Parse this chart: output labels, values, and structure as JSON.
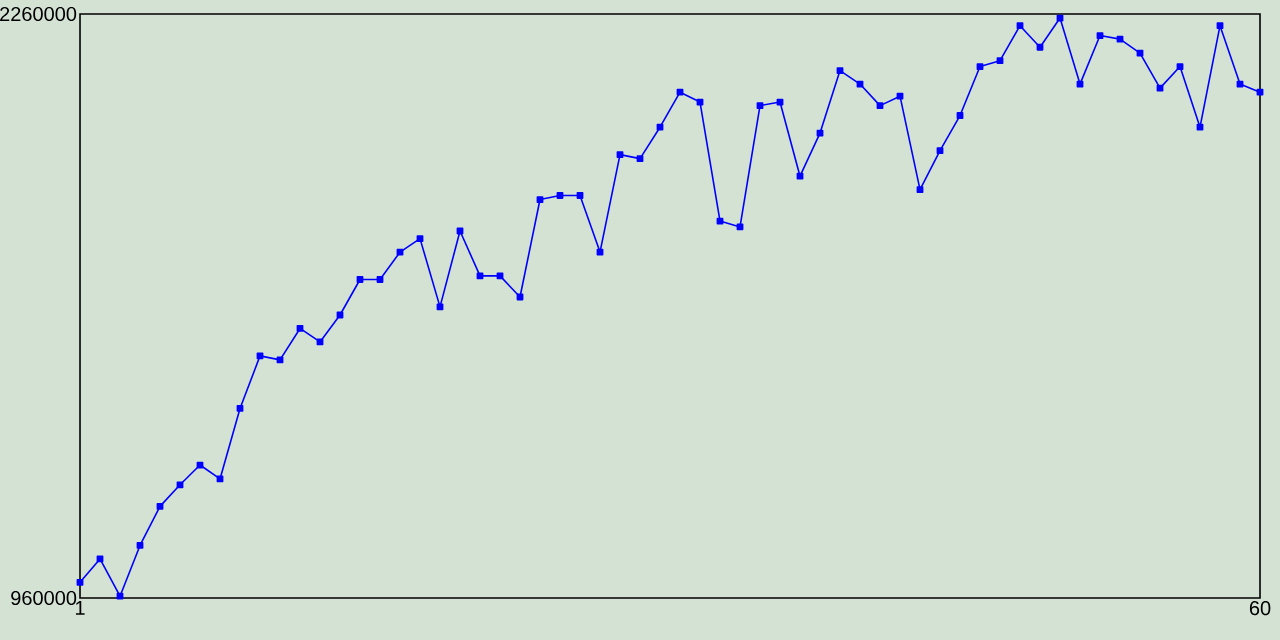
{
  "chart_data": {
    "type": "line",
    "x": [
      1,
      2,
      3,
      4,
      5,
      6,
      7,
      8,
      9,
      10,
      11,
      12,
      13,
      14,
      15,
      16,
      17,
      18,
      19,
      20,
      21,
      22,
      23,
      24,
      25,
      26,
      27,
      28,
      29,
      30,
      31,
      32,
      33,
      34,
      35,
      36,
      37,
      38,
      39,
      40,
      41,
      42,
      43,
      44,
      45,
      46,
      47,
      48,
      49,
      50,
      51,
      52,
      53,
      54,
      55,
      56,
      57,
      58,
      59,
      60
    ],
    "series": [
      {
        "color": "#0000ff",
        "values": [
          995000,
          1047000,
          964000,
          1077000,
          1164000,
          1212000,
          1256000,
          1225000,
          1382000,
          1499000,
          1490000,
          1560000,
          1530000,
          1590000,
          1669000,
          1669000,
          1730000,
          1760000,
          1608000,
          1777000,
          1677000,
          1677000,
          1630000,
          1847000,
          1856000,
          1856000,
          1730000,
          1947000,
          1938000,
          2008000,
          2086000,
          2064000,
          1799000,
          1786000,
          2056000,
          2064000,
          1899000,
          1995000,
          2134000,
          2104000,
          2056000,
          2077000,
          1869000,
          1956000,
          2034000,
          2143000,
          2156000,
          2234000,
          2186000,
          2251000,
          2104000,
          2212000,
          2204000,
          2173000,
          2095000,
          2143000,
          2008000,
          2234000,
          2104000,
          2086000
        ]
      }
    ],
    "xlim": [
      1,
      60
    ],
    "ylim": [
      960000,
      2260000
    ],
    "xticks": [
      1,
      60
    ],
    "yticks": [
      960000,
      2260000
    ],
    "marker": "square",
    "line_style": "solid"
  }
}
